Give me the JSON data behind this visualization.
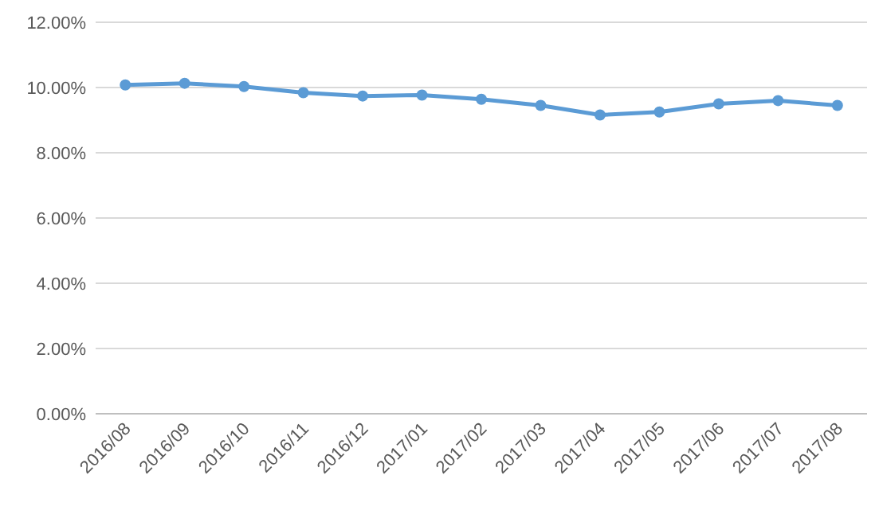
{
  "chart_data": {
    "type": "line",
    "categories": [
      "2016/08",
      "2016/09",
      "2016/10",
      "2016/11",
      "2016/12",
      "2017/01",
      "2017/02",
      "2017/03",
      "2017/04",
      "2017/05",
      "2017/06",
      "2017/07",
      "2017/08"
    ],
    "series": [
      {
        "color": "#5b9bd5",
        "values": [
          10.08,
          10.13,
          10.03,
          9.84,
          9.74,
          9.77,
          9.64,
          9.45,
          9.16,
          9.25,
          9.5,
          9.6,
          9.45
        ]
      }
    ],
    "ylim": [
      0,
      12
    ],
    "yticks": [
      {
        "value": 0,
        "label": "0.00%"
      },
      {
        "value": 2,
        "label": "2.00%"
      },
      {
        "value": 4,
        "label": "4.00%"
      },
      {
        "value": 6,
        "label": "6.00%"
      },
      {
        "value": 8,
        "label": "8.00%"
      },
      {
        "value": 10,
        "label": "10.00%"
      },
      {
        "value": 12,
        "label": "12.00%"
      }
    ],
    "grid": "y",
    "marker": "circle",
    "line_style": "solid"
  }
}
